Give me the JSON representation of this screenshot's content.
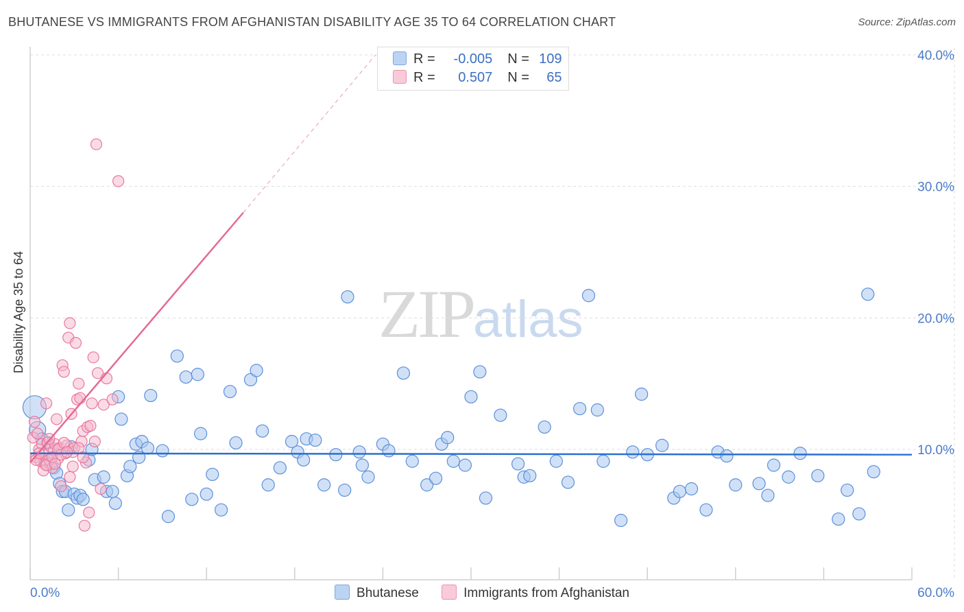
{
  "title": "BHUTANESE VS IMMIGRANTS FROM AFGHANISTAN DISABILITY AGE 35 TO 64 CORRELATION CHART",
  "source": "Source: ZipAtlas.com",
  "watermark": {
    "zip": "ZIP",
    "atlas": "atlas"
  },
  "legend": {
    "rows": [
      {
        "r_label": "R =",
        "r_value": "-0.005",
        "n_label": "N =",
        "n_value": "109"
      },
      {
        "r_label": "R =",
        "r_value": "0.507",
        "n_label": "N =",
        "n_value": "65"
      }
    ]
  },
  "colors": {
    "blue_fill": "#a9c8f0",
    "blue_stroke": "#5b8ed8",
    "blue_line": "#2a6fd0",
    "pink_fill": "#f6b8cb",
    "pink_stroke": "#e8779d",
    "pink_line": "#e46a93"
  },
  "chart_data": {
    "type": "scatter",
    "title": "BHUTANESE VS IMMIGRANTS FROM AFGHANISTAN DISABILITY AGE 35 TO 64 CORRELATION CHART",
    "xlabel": "",
    "ylabel": "Disability Age 35 to 64",
    "xlim": [
      0,
      60
    ],
    "ylim": [
      0,
      41
    ],
    "x_tick_labels": [
      "0.0%",
      "60.0%"
    ],
    "y_ticks": [
      10,
      20,
      30,
      40
    ],
    "y_tick_labels": [
      "10.0%",
      "20.0%",
      "30.0%",
      "40.0%"
    ],
    "legend_position": "bottom",
    "series": [
      {
        "name": "Bhutanese",
        "r": -0.005,
        "n": 109,
        "trend": {
          "x0": 0,
          "y0": 9.7,
          "x1": 60,
          "y1": 9.6
        },
        "points": [
          [
            0.3,
            13.2
          ],
          [
            0.5,
            11.5
          ],
          [
            0.8,
            10.8
          ],
          [
            1.0,
            9.1
          ],
          [
            1.2,
            10.5
          ],
          [
            1.4,
            8.9
          ],
          [
            1.6,
            8.6
          ],
          [
            1.8,
            8.2
          ],
          [
            2.0,
            7.4
          ],
          [
            2.2,
            6.8
          ],
          [
            2.4,
            6.8
          ],
          [
            2.6,
            5.4
          ],
          [
            2.8,
            10.2
          ],
          [
            3.0,
            6.6
          ],
          [
            3.2,
            6.3
          ],
          [
            3.4,
            6.5
          ],
          [
            3.6,
            6.2
          ],
          [
            4.0,
            9.2
          ],
          [
            4.2,
            10.0
          ],
          [
            4.4,
            7.7
          ],
          [
            5.0,
            7.9
          ],
          [
            5.2,
            6.8
          ],
          [
            5.6,
            6.8
          ],
          [
            5.8,
            5.9
          ],
          [
            6.0,
            14.0
          ],
          [
            6.2,
            12.3
          ],
          [
            6.6,
            8.0
          ],
          [
            6.8,
            8.7
          ],
          [
            7.2,
            10.4
          ],
          [
            7.4,
            9.4
          ],
          [
            7.6,
            10.6
          ],
          [
            8.0,
            10.1
          ],
          [
            8.2,
            14.1
          ],
          [
            9.0,
            9.9
          ],
          [
            9.4,
            4.9
          ],
          [
            10.0,
            17.1
          ],
          [
            10.6,
            15.5
          ],
          [
            11.0,
            6.2
          ],
          [
            11.4,
            15.7
          ],
          [
            11.6,
            11.2
          ],
          [
            12.0,
            6.6
          ],
          [
            12.4,
            8.1
          ],
          [
            13.0,
            5.4
          ],
          [
            13.6,
            14.4
          ],
          [
            14.0,
            10.5
          ],
          [
            15.0,
            15.3
          ],
          [
            15.4,
            16.0
          ],
          [
            15.8,
            11.4
          ],
          [
            16.2,
            7.3
          ],
          [
            17.0,
            8.6
          ],
          [
            17.8,
            10.6
          ],
          [
            18.2,
            9.8
          ],
          [
            18.6,
            9.2
          ],
          [
            18.8,
            10.8
          ],
          [
            19.4,
            10.7
          ],
          [
            20.0,
            7.3
          ],
          [
            20.8,
            9.6
          ],
          [
            21.4,
            6.9
          ],
          [
            21.6,
            21.6
          ],
          [
            22.4,
            9.8
          ],
          [
            22.6,
            8.8
          ],
          [
            23.0,
            7.9
          ],
          [
            24.0,
            10.4
          ],
          [
            24.4,
            9.9
          ],
          [
            25.4,
            15.8
          ],
          [
            26.0,
            9.1
          ],
          [
            27.0,
            7.3
          ],
          [
            27.6,
            7.8
          ],
          [
            28.0,
            10.4
          ],
          [
            28.4,
            10.9
          ],
          [
            28.8,
            9.1
          ],
          [
            29.6,
            8.8
          ],
          [
            30.0,
            14.0
          ],
          [
            30.6,
            15.9
          ],
          [
            31.0,
            6.3
          ],
          [
            32.0,
            12.6
          ],
          [
            33.2,
            8.9
          ],
          [
            33.6,
            7.9
          ],
          [
            34.0,
            8.0
          ],
          [
            35.0,
            11.7
          ],
          [
            35.8,
            9.1
          ],
          [
            36.6,
            7.5
          ],
          [
            37.4,
            13.1
          ],
          [
            38.0,
            21.7
          ],
          [
            38.6,
            13.0
          ],
          [
            39.0,
            9.1
          ],
          [
            40.2,
            4.6
          ],
          [
            41.0,
            9.8
          ],
          [
            41.6,
            14.2
          ],
          [
            42.0,
            9.6
          ],
          [
            43.0,
            10.3
          ],
          [
            43.8,
            6.3
          ],
          [
            44.2,
            6.8
          ],
          [
            45.0,
            7.0
          ],
          [
            46.0,
            5.4
          ],
          [
            46.8,
            9.8
          ],
          [
            47.4,
            9.5
          ],
          [
            48.0,
            7.3
          ],
          [
            49.6,
            7.4
          ],
          [
            50.2,
            6.5
          ],
          [
            50.6,
            8.8
          ],
          [
            51.6,
            7.9
          ],
          [
            52.4,
            9.7
          ],
          [
            53.6,
            8.0
          ],
          [
            55.0,
            4.7
          ],
          [
            55.6,
            6.9
          ],
          [
            56.4,
            5.1
          ],
          [
            57.0,
            21.8
          ],
          [
            57.4,
            8.3
          ]
        ]
      },
      {
        "name": "Immigrants from Afghanistan",
        "r": 0.507,
        "n": 65,
        "trend": {
          "x0": 0,
          "y0": 9.0,
          "x1": 14.5,
          "y1": 28.0,
          "dash_to": {
            "x": 23.5,
            "y": 40.0
          }
        },
        "points": [
          [
            0.2,
            10.9
          ],
          [
            0.3,
            12.1
          ],
          [
            0.4,
            9.4
          ],
          [
            0.5,
            11.2
          ],
          [
            0.6,
            10.0
          ],
          [
            0.7,
            9.1
          ],
          [
            0.8,
            10.4
          ],
          [
            0.9,
            9.6
          ],
          [
            1.0,
            8.9
          ],
          [
            1.1,
            13.5
          ],
          [
            1.2,
            10.5
          ],
          [
            1.3,
            9.2
          ],
          [
            1.4,
            10.2
          ],
          [
            1.5,
            8.6
          ],
          [
            1.6,
            9.9
          ],
          [
            1.7,
            10.4
          ],
          [
            1.8,
            12.3
          ],
          [
            1.9,
            9.3
          ],
          [
            2.0,
            10.1
          ],
          [
            2.1,
            7.2
          ],
          [
            2.2,
            16.4
          ],
          [
            2.3,
            15.9
          ],
          [
            2.4,
            9.7
          ],
          [
            2.5,
            10.3
          ],
          [
            2.6,
            18.5
          ],
          [
            2.7,
            19.6
          ],
          [
            2.8,
            12.7
          ],
          [
            2.9,
            9.8
          ],
          [
            3.0,
            10.1
          ],
          [
            3.1,
            18.1
          ],
          [
            3.2,
            13.8
          ],
          [
            3.3,
            15.0
          ],
          [
            3.4,
            13.9
          ],
          [
            3.5,
            10.6
          ],
          [
            3.6,
            11.4
          ],
          [
            3.7,
            4.2
          ],
          [
            3.8,
            9.0
          ],
          [
            3.9,
            11.7
          ],
          [
            4.0,
            5.2
          ],
          [
            4.1,
            11.8
          ],
          [
            4.2,
            13.5
          ],
          [
            4.3,
            17.0
          ],
          [
            4.4,
            10.6
          ],
          [
            4.5,
            33.2
          ],
          [
            4.6,
            15.8
          ],
          [
            4.8,
            7.0
          ],
          [
            5.0,
            13.4
          ],
          [
            5.2,
            15.4
          ],
          [
            5.6,
            13.8
          ],
          [
            6.0,
            30.4
          ],
          [
            0.4,
            9.2
          ],
          [
            0.6,
            9.7
          ],
          [
            0.9,
            8.4
          ],
          [
            1.1,
            8.8
          ],
          [
            1.3,
            10.8
          ],
          [
            1.5,
            9.4
          ],
          [
            1.7,
            8.9
          ],
          [
            1.9,
            10.0
          ],
          [
            2.1,
            9.6
          ],
          [
            2.3,
            10.5
          ],
          [
            2.5,
            9.8
          ],
          [
            2.7,
            7.9
          ],
          [
            2.9,
            8.7
          ],
          [
            3.3,
            10.1
          ],
          [
            3.6,
            9.4
          ]
        ]
      }
    ]
  },
  "bottom_legend": [
    {
      "label": "Bhutanese"
    },
    {
      "label": "Immigrants from Afghanistan"
    }
  ]
}
